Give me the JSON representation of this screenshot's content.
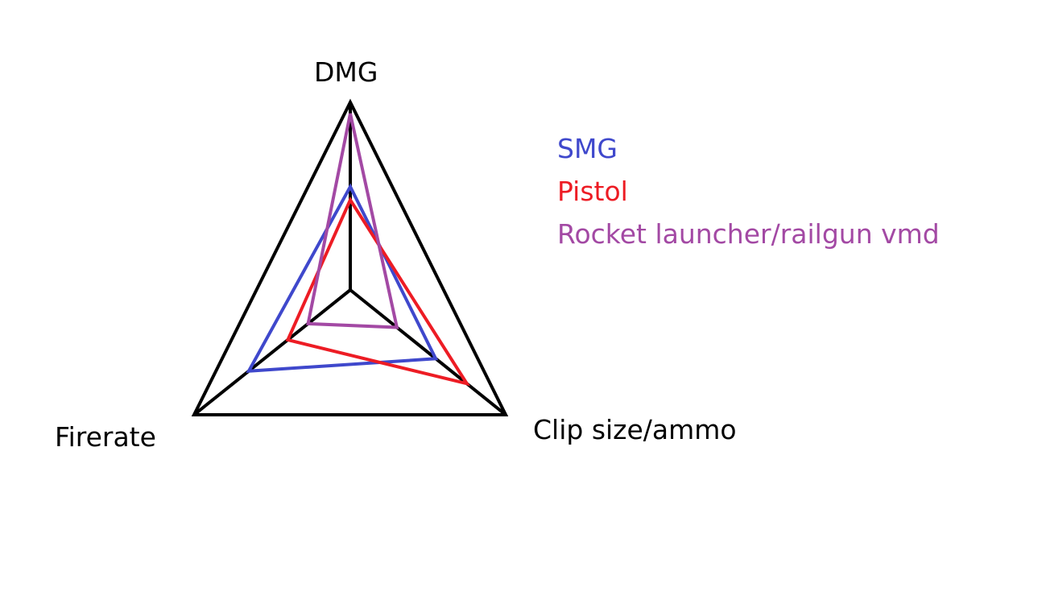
{
  "chart_data": {
    "type": "radar",
    "axes": [
      "DMG",
      "Clip size/ammo",
      "Firerate"
    ],
    "range": [
      0,
      1
    ],
    "series": [
      {
        "name": "SMG",
        "color": "#3f48cc",
        "values": [
          0.55,
          0.55,
          0.65
        ]
      },
      {
        "name": "Pistol",
        "color": "#ed1c24",
        "values": [
          0.48,
          0.75,
          0.4
        ]
      },
      {
        "name": "Rocket launcher/railgun vmd",
        "color": "#a349a4",
        "values": [
          0.94,
          0.3,
          0.27
        ]
      }
    ],
    "frame_color": "#000000"
  }
}
